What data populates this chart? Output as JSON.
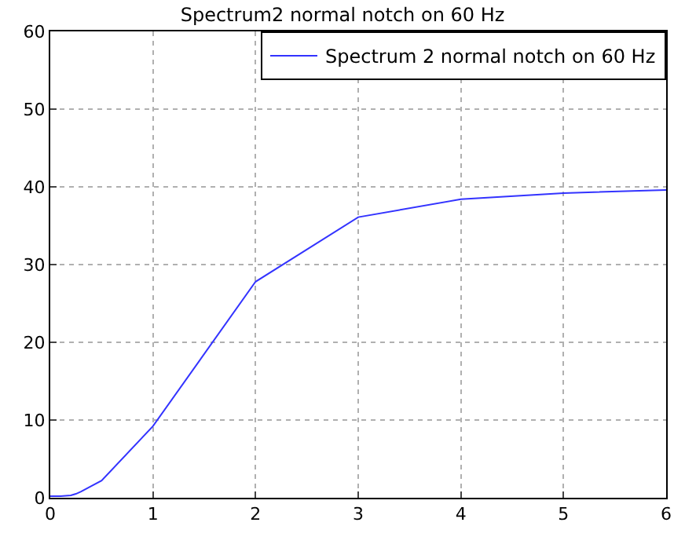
{
  "chart_data": {
    "type": "line",
    "title": "Spectrum2 normal notch on 60 Hz",
    "x": [
      0,
      0.1,
      0.2,
      0.25,
      0.3,
      0.4,
      0.5,
      1,
      2,
      3,
      4,
      5,
      6
    ],
    "series": [
      {
        "name": "Spectrum 2 normal notch on 60 Hz",
        "color": "#3333ff",
        "values": [
          0.2,
          0.2,
          0.3,
          0.5,
          0.8,
          1.5,
          2.2,
          9.2,
          27.8,
          36.1,
          38.4,
          39.2,
          39.6
        ]
      }
    ],
    "xlim": [
      0,
      6
    ],
    "xticks": [
      0,
      1,
      2,
      3,
      4,
      5,
      6
    ],
    "ylim": [
      0,
      60
    ],
    "yticks": [
      0,
      10,
      20,
      30,
      40,
      50,
      60
    ],
    "grid": true,
    "legend": "top right",
    "marker": "none",
    "line_style": "solid"
  }
}
